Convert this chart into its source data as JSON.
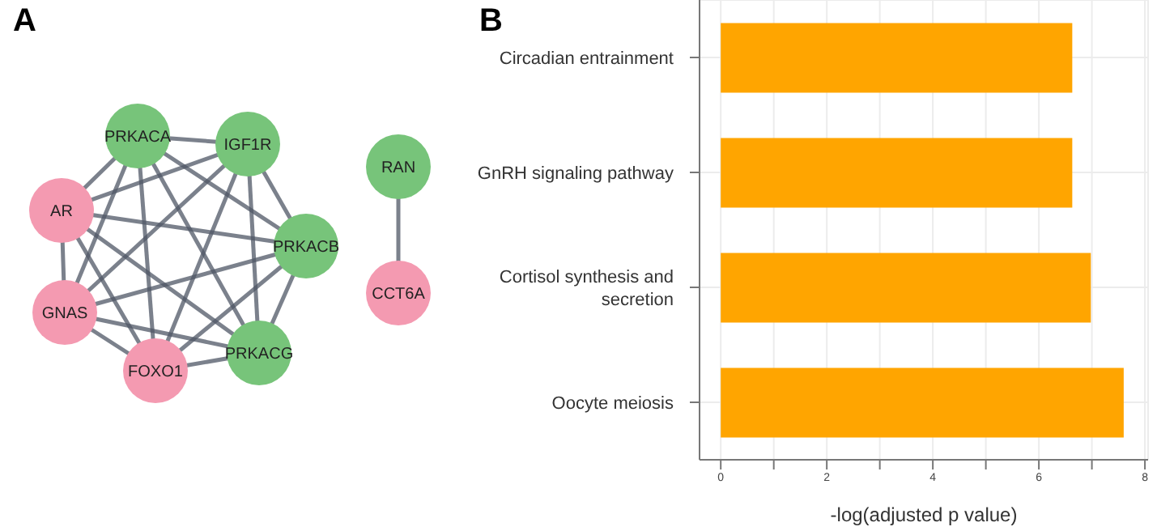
{
  "chart_data": [
    {
      "type": "other",
      "title": "A",
      "categories": [
        "PRKACA",
        "IGF1R",
        "AR",
        "PRKACB",
        "GNAS",
        "PRKACG",
        "FOXO1",
        "RAN",
        "CCT6A"
      ],
      "colors": [
        "#77c47a",
        "#77c47a",
        "#f49ab1",
        "#77c47a",
        "#f49ab1",
        "#77c47a",
        "#f49ab1",
        "#77c47a",
        "#f49ab1"
      ]
    },
    {
      "type": "bar",
      "title": "B",
      "orientation": "horizontal",
      "categories": [
        "Circadian entrainment",
        "GnRH signaling pathway",
        "Cortisol synthesis and secretion",
        "Oocyte meiosis"
      ],
      "values": [
        6.63,
        6.63,
        6.98,
        7.6
      ],
      "color": "#ffa500",
      "xlabel": "-log(adjusted p value)",
      "xlim": [
        -0.4,
        8.06
      ],
      "xticks": [
        0,
        {
          "value": 1,
          "label": null
        },
        2,
        {
          "value": 3,
          "label": null
        },
        4,
        {
          "value": 5,
          "label": null
        },
        6,
        {
          "value": 7,
          "label": null
        },
        8
      ],
      "grid": true
    }
  ]
}
